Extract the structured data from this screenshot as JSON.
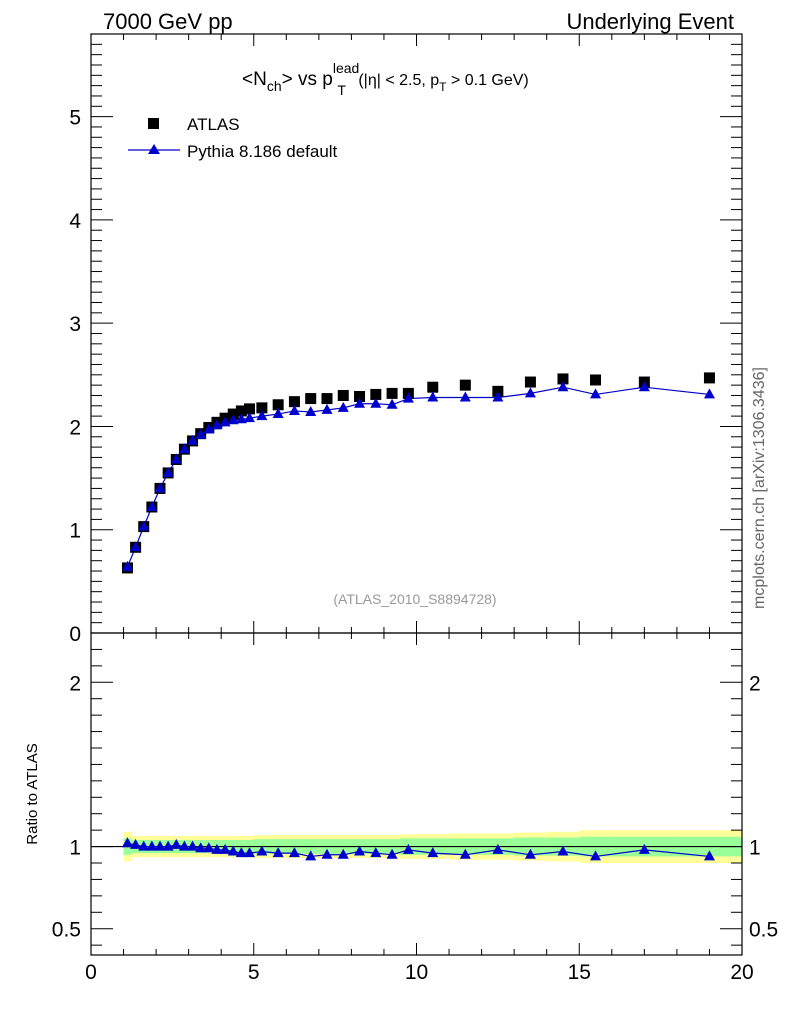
{
  "header": {
    "left": "7000 GeV pp",
    "right": "Underlying Event"
  },
  "side_label": "mcplots.cern.ch [arXiv:1306.3436]",
  "chart_data": [
    {
      "type": "scatter",
      "panel": "main",
      "title": "<N_ch> vs p_T^lead (|η| < 2.5, p_T > 0.1 GeV)",
      "title_parts": {
        "n": "<N",
        "ch": "ch",
        "vs": "> vs p",
        "lead": "lead",
        "T": "T",
        "cut_a": " (|η| < 2.5, p",
        "cut_T": "T",
        "cut_b": " > 0.1 GeV)"
      },
      "watermark": "(ATLAS_2010_S8894728)",
      "xlim": [
        0,
        20
      ],
      "ylim": [
        0,
        5.8
      ],
      "x_ticks": [
        0,
        5,
        10,
        15,
        20
      ],
      "y_ticks": [
        0,
        1,
        2,
        3,
        4,
        5
      ],
      "y_tick_labels": [
        "0",
        "1",
        "2",
        "3",
        "4",
        "5"
      ],
      "legend_position": "top-left",
      "series": [
        {
          "name": "ATLAS",
          "marker": "square",
          "color": "#000000",
          "x": [
            1.12,
            1.37,
            1.62,
            1.87,
            2.12,
            2.37,
            2.62,
            2.87,
            3.12,
            3.37,
            3.62,
            3.87,
            4.12,
            4.37,
            4.62,
            4.87,
            5.25,
            5.75,
            6.25,
            6.75,
            7.25,
            7.75,
            8.25,
            8.75,
            9.25,
            9.75,
            10.5,
            11.5,
            12.5,
            13.5,
            14.5,
            15.5,
            17.0,
            19.0
          ],
          "y": [
            0.63,
            0.83,
            1.03,
            1.22,
            1.4,
            1.55,
            1.68,
            1.78,
            1.86,
            1.93,
            1.99,
            2.04,
            2.08,
            2.12,
            2.15,
            2.17,
            2.18,
            2.21,
            2.24,
            2.27,
            2.27,
            2.3,
            2.29,
            2.31,
            2.32,
            2.32,
            2.38,
            2.4,
            2.34,
            2.43,
            2.46,
            2.45,
            2.43,
            2.47
          ]
        },
        {
          "name": "Pythia 8.186 default",
          "marker": "triangle",
          "color": "#0000cc",
          "x": [
            1.12,
            1.37,
            1.62,
            1.87,
            2.12,
            2.37,
            2.62,
            2.87,
            3.12,
            3.37,
            3.62,
            3.87,
            4.12,
            4.37,
            4.62,
            4.87,
            5.25,
            5.75,
            6.25,
            6.75,
            7.25,
            7.75,
            8.25,
            8.75,
            9.25,
            9.75,
            10.5,
            11.5,
            12.5,
            13.5,
            14.5,
            15.5,
            17.0,
            19.0
          ],
          "y": [
            0.64,
            0.83,
            1.03,
            1.22,
            1.4,
            1.55,
            1.68,
            1.78,
            1.86,
            1.92,
            1.97,
            2.01,
            2.04,
            2.06,
            2.07,
            2.08,
            2.1,
            2.12,
            2.15,
            2.14,
            2.16,
            2.18,
            2.22,
            2.22,
            2.21,
            2.27,
            2.28,
            2.28,
            2.28,
            2.32,
            2.38,
            2.31,
            2.38,
            2.31
          ]
        }
      ]
    },
    {
      "type": "line",
      "panel": "ratio",
      "ylabel": "Ratio to ATLAS",
      "xlim": [
        0,
        20
      ],
      "ylim": [
        0.34,
        2.3
      ],
      "x_ticks": [
        0,
        5,
        10,
        15,
        20
      ],
      "x_tick_labels": [
        "0",
        "5",
        "10",
        "15",
        "20"
      ],
      "y_ticks": [
        0.5,
        1,
        2
      ],
      "y_tick_labels": [
        "0.5",
        "1",
        "2"
      ],
      "bands": {
        "stat_color": "#99ff99",
        "total_color": "#ffff99",
        "x_edges": [
          1.0,
          1.25,
          1.5,
          1.75,
          2.0,
          2.25,
          2.5,
          2.75,
          3.0,
          3.25,
          3.5,
          3.75,
          4.0,
          4.25,
          4.5,
          4.75,
          5.0,
          5.5,
          6.0,
          6.5,
          7.0,
          7.5,
          8.0,
          8.5,
          9.0,
          9.5,
          10.0,
          11.0,
          12.0,
          13.0,
          14.0,
          15.0,
          16.0,
          18.0,
          20.0
        ],
        "stat_halfwidth": [
          0.05,
          0.04,
          0.04,
          0.04,
          0.04,
          0.04,
          0.04,
          0.04,
          0.04,
          0.04,
          0.04,
          0.04,
          0.04,
          0.04,
          0.04,
          0.04,
          0.045,
          0.045,
          0.045,
          0.045,
          0.045,
          0.045,
          0.045,
          0.045,
          0.045,
          0.05,
          0.05,
          0.05,
          0.05,
          0.055,
          0.055,
          0.06,
          0.06,
          0.06
        ],
        "total_halfwidth": [
          0.09,
          0.065,
          0.065,
          0.065,
          0.065,
          0.065,
          0.065,
          0.065,
          0.065,
          0.065,
          0.065,
          0.065,
          0.065,
          0.065,
          0.065,
          0.065,
          0.07,
          0.07,
          0.07,
          0.07,
          0.07,
          0.07,
          0.07,
          0.07,
          0.07,
          0.075,
          0.075,
          0.08,
          0.08,
          0.085,
          0.09,
          0.1,
          0.1,
          0.1
        ]
      },
      "series": [
        {
          "name": "Pythia 8.186 default",
          "color": "#0000cc",
          "x": [
            1.12,
            1.37,
            1.62,
            1.87,
            2.12,
            2.37,
            2.62,
            2.87,
            3.12,
            3.37,
            3.62,
            3.87,
            4.12,
            4.37,
            4.62,
            4.87,
            5.25,
            5.75,
            6.25,
            6.75,
            7.25,
            7.75,
            8.25,
            8.75,
            9.25,
            9.75,
            10.5,
            11.5,
            12.5,
            13.5,
            14.5,
            15.5,
            17.0,
            19.0
          ],
          "y": [
            1.02,
            1.01,
            1.0,
            1.0,
            1.0,
            1.0,
            1.01,
            1.0,
            1.0,
            0.99,
            0.99,
            0.98,
            0.98,
            0.97,
            0.96,
            0.96,
            0.97,
            0.96,
            0.96,
            0.94,
            0.95,
            0.95,
            0.97,
            0.96,
            0.95,
            0.98,
            0.96,
            0.95,
            0.98,
            0.95,
            0.97,
            0.94,
            0.98,
            0.94
          ]
        }
      ]
    }
  ]
}
